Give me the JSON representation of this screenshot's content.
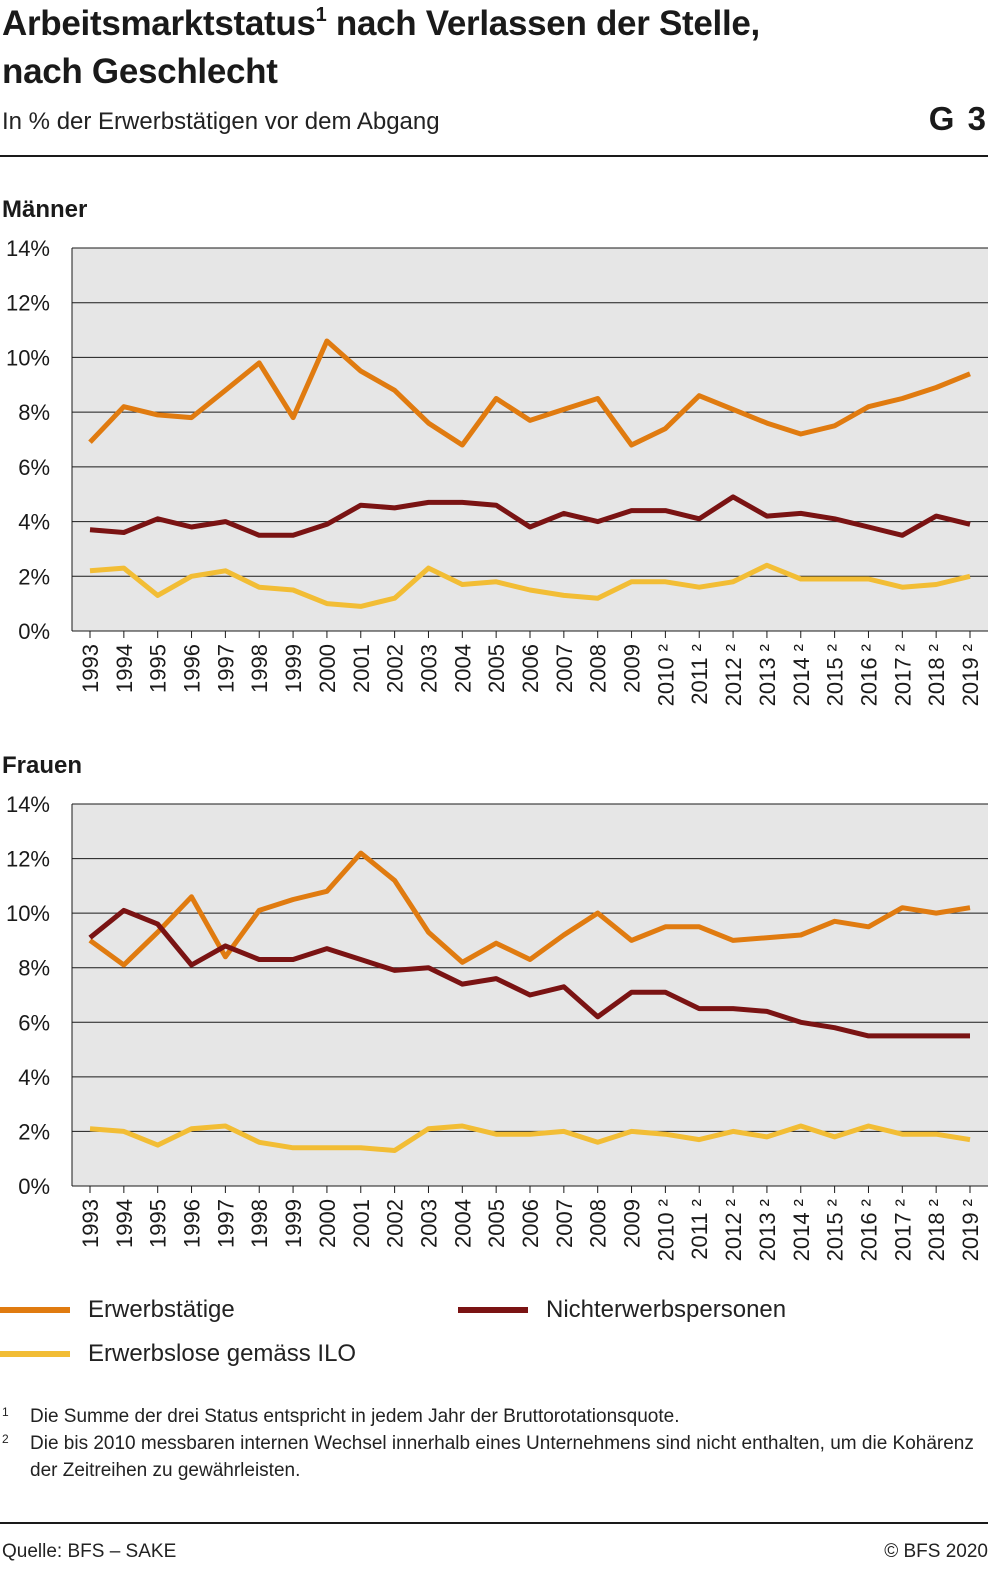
{
  "header": {
    "title": "Arbeitsmarktstatus",
    "title_sup": "1",
    "title_rest": " nach Verlassen der Stelle,",
    "title_line2": "nach Geschlecht",
    "subtitle": "In % der Erwerbstätigen vor dem Abgang",
    "graphic_number": "G 3"
  },
  "colors": {
    "erwerbstaetige": "#e07b10",
    "nichterwerbspersonen": "#7a1313",
    "erwerbslose": "#f2bd35",
    "plot_bg": "#e6e6e6",
    "grid": "#1a1a1a"
  },
  "chart_data": [
    {
      "type": "line",
      "title": "Männer",
      "x": [
        "1993",
        "1994",
        "1995",
        "1996",
        "1997",
        "1998",
        "1999",
        "2000",
        "2001",
        "2002",
        "2003",
        "2004",
        "2005",
        "2006",
        "2007",
        "2008",
        "2009",
        "2010 ²",
        "2011 ²",
        "2012 ²",
        "2013 ²",
        "2014 ²",
        "2015 ²",
        "2016 ²",
        "2017 ²",
        "2018 ²",
        "2019 ²"
      ],
      "ylim": [
        0,
        14
      ],
      "yticks": [
        "0%",
        "2%",
        "4%",
        "6%",
        "8%",
        "10%",
        "12%",
        "14%"
      ],
      "grid": true,
      "series": [
        {
          "name": "Erwerbstätige",
          "color": "#e07b10",
          "values": [
            6.9,
            8.2,
            7.9,
            7.8,
            8.8,
            9.8,
            7.8,
            10.6,
            9.5,
            8.8,
            7.6,
            6.8,
            8.5,
            7.7,
            8.1,
            8.5,
            6.8,
            7.4,
            8.6,
            8.1,
            7.6,
            7.2,
            7.5,
            8.2,
            8.5,
            8.9,
            9.4
          ]
        },
        {
          "name": "Nichterwerbspersonen",
          "color": "#7a1313",
          "values": [
            3.7,
            3.6,
            4.1,
            3.8,
            4.0,
            3.5,
            3.5,
            3.9,
            4.6,
            4.5,
            4.7,
            4.7,
            4.6,
            3.8,
            4.3,
            4.0,
            4.4,
            4.4,
            4.1,
            4.9,
            4.2,
            4.3,
            4.1,
            3.8,
            3.5,
            4.2,
            3.9
          ]
        },
        {
          "name": "Erwerbslose gemäss ILO",
          "color": "#f2bd35",
          "values": [
            2.2,
            2.3,
            1.3,
            2.0,
            2.2,
            1.6,
            1.5,
            1.0,
            0.9,
            1.2,
            2.3,
            1.7,
            1.8,
            1.5,
            1.3,
            1.2,
            1.8,
            1.8,
            1.6,
            1.8,
            2.4,
            1.9,
            1.9,
            1.9,
            1.6,
            1.7,
            2.0
          ]
        }
      ]
    },
    {
      "type": "line",
      "title": "Frauen",
      "x": [
        "1993",
        "1994",
        "1995",
        "1996",
        "1997",
        "1998",
        "1999",
        "2000",
        "2001",
        "2002",
        "2003",
        "2004",
        "2005",
        "2006",
        "2007",
        "2008",
        "2009",
        "2010 ²",
        "2011 ²",
        "2012 ²",
        "2013 ²",
        "2014 ²",
        "2015 ²",
        "2016 ²",
        "2017 ²",
        "2018 ²",
        "2019 ²"
      ],
      "ylim": [
        0,
        14
      ],
      "yticks": [
        "0%",
        "2%",
        "4%",
        "6%",
        "8%",
        "10%",
        "12%",
        "14%"
      ],
      "grid": true,
      "series": [
        {
          "name": "Erwerbstätige",
          "color": "#e07b10",
          "values": [
            9.0,
            8.1,
            9.3,
            10.6,
            8.4,
            10.1,
            10.5,
            10.8,
            12.2,
            11.2,
            9.3,
            8.2,
            8.9,
            8.3,
            9.2,
            10.0,
            9.0,
            9.5,
            9.5,
            9.0,
            9.1,
            9.2,
            9.7,
            9.5,
            10.2,
            10.0,
            10.2
          ]
        },
        {
          "name": "Nichterwerbspersonen",
          "color": "#7a1313",
          "values": [
            9.1,
            10.1,
            9.6,
            8.1,
            8.8,
            8.3,
            8.3,
            8.7,
            8.3,
            7.9,
            8.0,
            7.4,
            7.6,
            7.0,
            7.3,
            6.2,
            7.1,
            7.1,
            6.5,
            6.5,
            6.4,
            6.0,
            5.8,
            5.5,
            5.5,
            5.5,
            5.5
          ]
        },
        {
          "name": "Erwerbslose gemäss ILO",
          "color": "#f2bd35",
          "values": [
            2.1,
            2.0,
            1.5,
            2.1,
            2.2,
            1.6,
            1.4,
            1.4,
            1.4,
            1.3,
            2.1,
            2.2,
            1.9,
            1.9,
            2.0,
            1.6,
            2.0,
            1.9,
            1.7,
            2.0,
            1.8,
            2.2,
            1.8,
            2.2,
            1.9,
            1.9,
            1.7
          ]
        }
      ]
    }
  ],
  "legend": [
    {
      "label": "Erwerbstätige",
      "color": "#e07b10"
    },
    {
      "label": "Nichterwerbspersonen",
      "color": "#7a1313"
    },
    {
      "label": "Erwerbslose gemäss ILO",
      "color": "#f2bd35"
    }
  ],
  "footnotes": [
    {
      "mark": "1",
      "text": "Die Summe der drei Status entspricht in jedem Jahr der Bruttorotationsquote."
    },
    {
      "mark": "2",
      "text": "Die bis 2010 messbaren internen Wechsel innerhalb eines Unternehmens sind nicht enthalten, um die Kohärenz der Zeitreihen zu gewährleisten."
    }
  ],
  "footer": {
    "source": "Quelle: BFS – SAKE",
    "copyright": "© BFS 2020"
  }
}
